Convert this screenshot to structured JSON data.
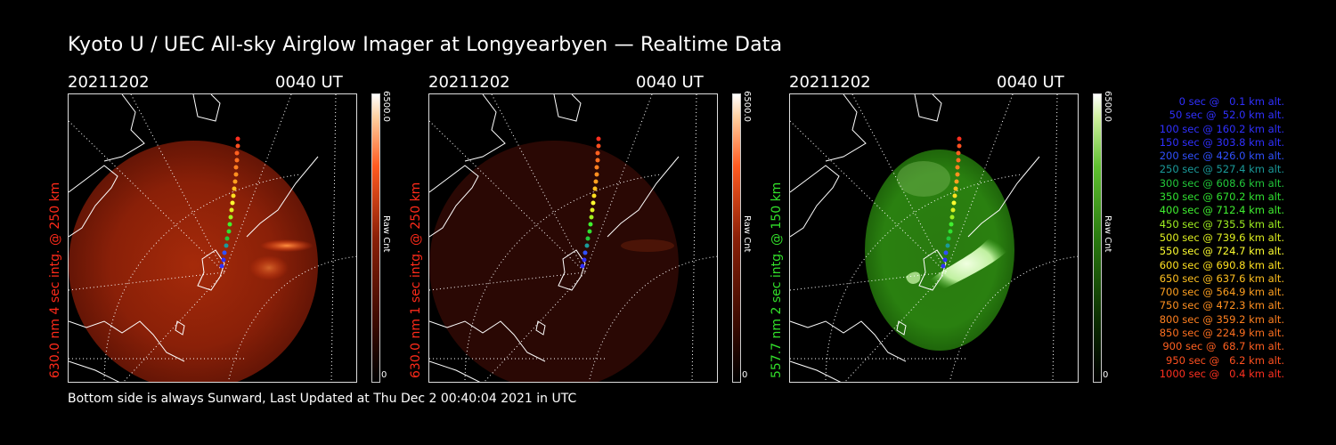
{
  "title": "Kyoto U / UEC All-sky Airglow Imager at Longyearbyen — Realtime Data",
  "footer": "Bottom side is always Sunward, Last Updated at Thu Dec  2 00:40:04 2021 in UTC",
  "panels": [
    {
      "date": "20211202",
      "time": "0040 UT",
      "side_label": "630.0 nm 4 sec intg. @ 250 km",
      "label_color": "#ff2a1a",
      "colorbar_max": "6500.0",
      "colorbar_unit": "Raw Cnt",
      "colorbar_min": "0",
      "emission": "red-630"
    },
    {
      "date": "20211202",
      "time": "0040 UT",
      "side_label": "630.0 nm 1 sec intg. @ 250 km",
      "label_color": "#ff2a1a",
      "colorbar_max": "6500.0",
      "colorbar_unit": "Raw Cnt",
      "colorbar_min": "0",
      "emission": "red-630-dim"
    },
    {
      "date": "20211202",
      "time": "0040 UT",
      "side_label": "557.7 nm 2 sec intg. @ 150 km",
      "label_color": "#32e02a",
      "colorbar_max": "6500.0",
      "colorbar_unit": "Raw Cnt",
      "colorbar_min": "0",
      "emission": "green-557"
    }
  ],
  "legend": [
    {
      "text": "0 sec @   0.1 km alt.",
      "color": "#3030ff"
    },
    {
      "text": "50 sec @  52.0 km alt.",
      "color": "#3030ff"
    },
    {
      "text": "100 sec @ 160.2 km alt.",
      "color": "#3030ff"
    },
    {
      "text": "150 sec @ 303.8 km alt.",
      "color": "#3030ff"
    },
    {
      "text": "200 sec @ 426.0 km alt.",
      "color": "#3050ff"
    },
    {
      "text": "250 sec @ 527.4 km alt.",
      "color": "#1a9a9a"
    },
    {
      "text": "300 sec @ 608.6 km alt.",
      "color": "#22c83a"
    },
    {
      "text": "350 sec @ 670.2 km alt.",
      "color": "#30e030"
    },
    {
      "text": "400 sec @ 712.4 km alt.",
      "color": "#40f030"
    },
    {
      "text": "450 sec @ 735.5 km alt.",
      "color": "#a0f020"
    },
    {
      "text": "500 sec @ 739.6 km alt.",
      "color": "#e0f020"
    },
    {
      "text": "550 sec @ 724.7 km alt.",
      "color": "#ffff30"
    },
    {
      "text": "600 sec @ 690.8 km alt.",
      "color": "#ffe020"
    },
    {
      "text": "650 sec @ 637.6 km alt.",
      "color": "#ffc020"
    },
    {
      "text": "700 sec @ 564.9 km alt.",
      "color": "#ffa020"
    },
    {
      "text": "750 sec @ 472.3 km alt.",
      "color": "#ff9020"
    },
    {
      "text": "800 sec @ 359.2 km alt.",
      "color": "#ff8020"
    },
    {
      "text": "850 sec @ 224.9 km alt.",
      "color": "#ff7020"
    },
    {
      "text": "900 sec @  68.7 km alt.",
      "color": "#ff6020"
    },
    {
      "text": "950 sec @   6.2 km alt.",
      "color": "#ff5020"
    },
    {
      "text": "1000 sec @   0.4 km alt.",
      "color": "#ff3020"
    }
  ]
}
